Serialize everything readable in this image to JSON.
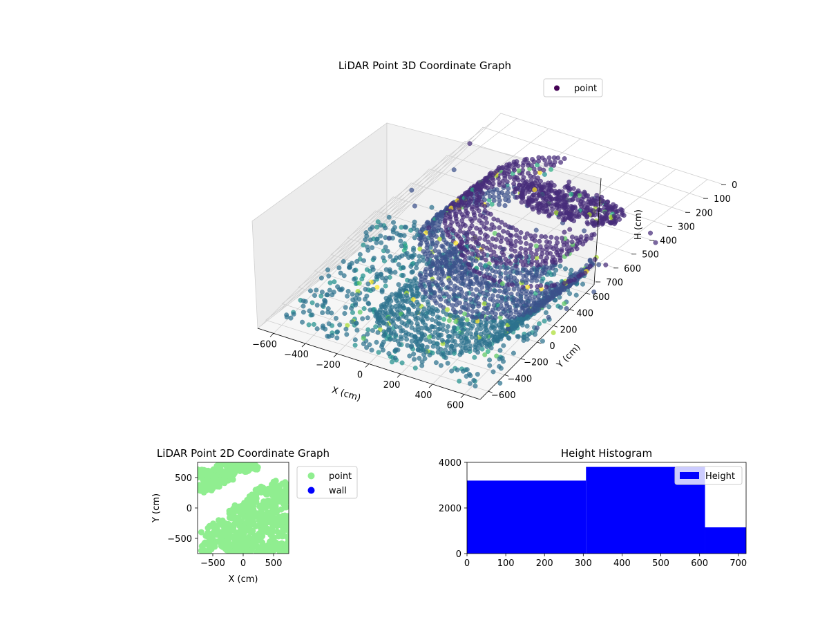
{
  "chart_data": [
    {
      "type": "scatter",
      "title": "LiDAR Point 3D Coordinate Graph",
      "projection": "3d",
      "xlabel": "X (cm)",
      "ylabel": "Y (cm)",
      "zlabel": "H (cm)",
      "xlim": [
        -700,
        700
      ],
      "ylim": [
        -700,
        700
      ],
      "zlim": [
        0,
        720
      ],
      "z_inverted": true,
      "xticks": [
        -600,
        -400,
        -200,
        0,
        200,
        400,
        600
      ],
      "yticks": [
        -600,
        -400,
        -200,
        0,
        200,
        400,
        600
      ],
      "zticks": [
        0,
        100,
        200,
        300,
        400,
        500,
        600,
        700
      ],
      "legend": [
        {
          "label": "point",
          "color": "#440154"
        }
      ],
      "legend_position": "upper-right",
      "colormap": "viridis",
      "grid": true,
      "series": [
        {
          "name": "point",
          "structures": [
            {
              "shape": "wall-arc",
              "cx": -40,
              "cy": 80,
              "r": 420,
              "from_deg": 110,
              "to_deg": 330,
              "z_top": 0,
              "z_bottom": 340
            },
            {
              "shape": "ceiling-blob",
              "cx": 60,
              "cy": 140,
              "r": 260,
              "z": 30
            },
            {
              "shape": "wall-arc",
              "cx": 120,
              "cy": -120,
              "r": 380,
              "from_deg": 200,
              "to_deg": 20,
              "z_top": 200,
              "z_bottom": 700
            },
            {
              "shape": "floor-scatter",
              "xrange": [
                -650,
                650
              ],
              "yrange": [
                -680,
                650
              ],
              "z": 690
            },
            {
              "shape": "outliers",
              "count": 60,
              "z_range": [
                0,
                700
              ]
            }
          ]
        }
      ]
    },
    {
      "type": "scatter",
      "title": "LiDAR Point 2D Coordinate Graph",
      "xlabel": "X (cm)",
      "ylabel": "Y (cm)",
      "xlim": [
        -750,
        750
      ],
      "ylim": [
        -750,
        750
      ],
      "xticks": [
        -500,
        0,
        500
      ],
      "yticks": [
        -500,
        0,
        500
      ],
      "grid": false,
      "legend": [
        {
          "label": "point",
          "color": "#90ee90"
        },
        {
          "label": "wall",
          "color": "#0000ff"
        }
      ],
      "legend_position": "outside-right",
      "series": [
        {
          "name": "point",
          "color": "#90ee90",
          "regions": [
            {
              "shape": "band",
              "from": [
                -720,
                560
              ],
              "to": [
                180,
                720
              ],
              "width": 200
            },
            {
              "shape": "band",
              "from": [
                -700,
                300
              ],
              "to": [
                -200,
                560
              ],
              "width": 160
            },
            {
              "shape": "lower-right-mass",
              "corner": [
                750,
                -750
              ],
              "reach": [
                -700,
                450
              ]
            }
          ]
        },
        {
          "name": "wall",
          "color": "#0000ff",
          "values": []
        }
      ]
    },
    {
      "type": "bar",
      "title": "Height Histogram",
      "xlabel": "",
      "ylabel": "",
      "xlim": [
        0,
        720
      ],
      "ylim": [
        0,
        4000
      ],
      "xticks": [
        0,
        100,
        200,
        300,
        400,
        500,
        600,
        700
      ],
      "yticks": [
        0,
        2000,
        4000
      ],
      "legend": [
        {
          "label": "Height",
          "color": "#0000ff"
        }
      ],
      "legend_position": "upper-right",
      "series": [
        {
          "name": "Height",
          "color": "#0000ff",
          "bins": [
            {
              "x0": 0,
              "x1": 307,
              "value": 3200
            },
            {
              "x0": 307,
              "x1": 614,
              "value": 3800
            },
            {
              "x0": 614,
              "x1": 720,
              "value": 1150
            }
          ]
        }
      ]
    }
  ]
}
